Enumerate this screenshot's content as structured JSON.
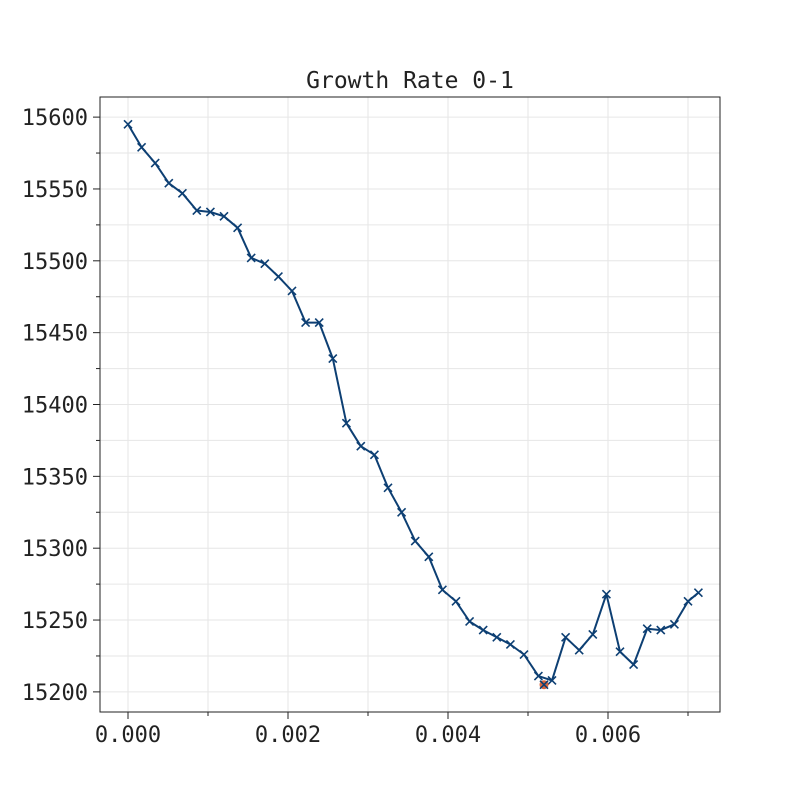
{
  "chart_data": {
    "type": "line",
    "title": "Growth Rate 0-1",
    "xlabel": "",
    "ylabel": "",
    "xlim": [
      -0.00035,
      0.0074
    ],
    "ylim": [
      15186,
      15614
    ],
    "x_ticks": [
      0.0,
      0.002,
      0.004,
      0.006
    ],
    "x_tick_labels": [
      "0.000",
      "0.002",
      "0.004",
      "0.006"
    ],
    "y_ticks": [
      15200,
      15250,
      15300,
      15350,
      15400,
      15450,
      15500,
      15550,
      15600
    ],
    "y_tick_labels": [
      "15200",
      "15250",
      "15300",
      "15350",
      "15400",
      "15450",
      "15500",
      "15550",
      "15600"
    ],
    "grid": true,
    "colors": {
      "line": "#0d3f73",
      "marker": "#0d3f73",
      "highlight": "#d9653b",
      "grid": "#e6e6e6"
    },
    "series": [
      {
        "marker": "x",
        "x": [
          0.0,
          0.00017,
          0.00034,
          0.00051,
          0.00068,
          0.00086,
          0.00103,
          0.0012,
          0.00137,
          0.00154,
          0.00171,
          0.00188,
          0.00205,
          0.00222,
          0.00239,
          0.00256,
          0.00273,
          0.00291,
          0.00308,
          0.00325,
          0.00342,
          0.00359,
          0.00376,
          0.00393,
          0.0041,
          0.00427,
          0.00444,
          0.00461,
          0.00478,
          0.00495,
          0.00513,
          0.0053,
          0.00547,
          0.00564,
          0.00581,
          0.00598,
          0.00615,
          0.00632,
          0.00649,
          0.00666,
          0.00683,
          0.007,
          0.00713
        ],
        "y": [
          15595,
          15579,
          15568,
          15554,
          15547,
          15535,
          15534,
          15531,
          15523,
          15502,
          15498,
          15489,
          15479,
          15457,
          15457,
          15432,
          15387,
          15371,
          15365,
          15342,
          15325,
          15305,
          15294,
          15271,
          15263,
          15249,
          15243,
          15238,
          15233,
          15226,
          15211,
          15208,
          15238,
          15229,
          15240,
          15268,
          15228,
          15219,
          15244,
          15243,
          15247,
          15263,
          15269
        ]
      }
    ],
    "highlight": {
      "x": 0.0052,
      "y": 15205
    }
  }
}
